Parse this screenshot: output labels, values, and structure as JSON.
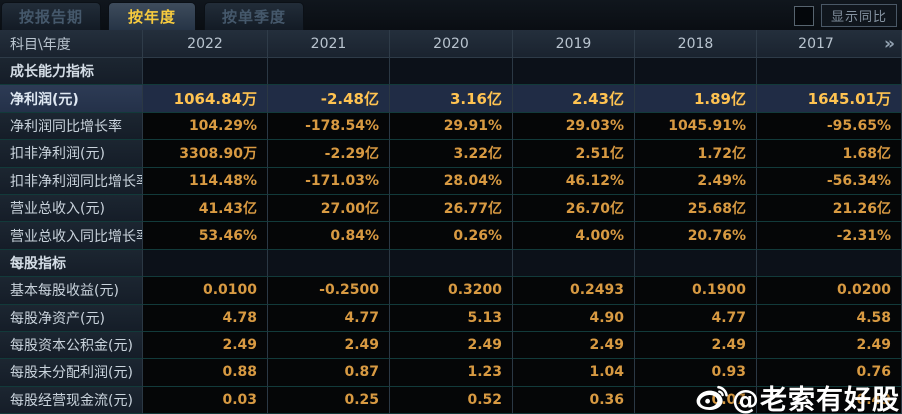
{
  "tabs": [
    {
      "label": "按报告期",
      "active": false
    },
    {
      "label": "按年度",
      "active": true
    },
    {
      "label": "按单季度",
      "active": false
    }
  ],
  "controls": {
    "show_yoy_label": "显示同比",
    "checkbox_checked": false
  },
  "table": {
    "corner_header": "科目\\年度",
    "year_columns": [
      "2022",
      "2021",
      "2020",
      "2019",
      "2018",
      "2017"
    ],
    "more_icon": "»",
    "rows": [
      {
        "type": "section",
        "label": "成长能力指标"
      },
      {
        "type": "data",
        "highlight": true,
        "label": "净利润(元)",
        "values": [
          "1064.84万",
          "-2.48亿",
          "3.16亿",
          "2.43亿",
          "1.89亿",
          "1645.01万"
        ]
      },
      {
        "type": "data",
        "highlight": false,
        "label": "净利润同比增长率",
        "values": [
          "104.29%",
          "-178.54%",
          "29.91%",
          "29.03%",
          "1045.91%",
          "-95.65%"
        ]
      },
      {
        "type": "data",
        "highlight": false,
        "label": "扣非净利润(元)",
        "values": [
          "3308.90万",
          "-2.29亿",
          "3.22亿",
          "2.51亿",
          "1.72亿",
          "1.68亿"
        ]
      },
      {
        "type": "data",
        "highlight": false,
        "label": "扣非净利润同比增长率",
        "values": [
          "114.48%",
          "-171.03%",
          "28.04%",
          "46.12%",
          "2.49%",
          "-56.34%"
        ]
      },
      {
        "type": "data",
        "highlight": false,
        "label": "营业总收入(元)",
        "values": [
          "41.43亿",
          "27.00亿",
          "26.77亿",
          "26.70亿",
          "25.68亿",
          "21.26亿"
        ]
      },
      {
        "type": "data",
        "highlight": false,
        "label": "营业总收入同比增长率",
        "values": [
          "53.46%",
          "0.84%",
          "0.26%",
          "4.00%",
          "20.76%",
          "-2.31%"
        ]
      },
      {
        "type": "section",
        "label": "每股指标"
      },
      {
        "type": "data",
        "highlight": false,
        "label": "基本每股收益(元)",
        "values": [
          "0.0100",
          "-0.2500",
          "0.3200",
          "0.2493",
          "0.1900",
          "0.0200"
        ]
      },
      {
        "type": "data",
        "highlight": false,
        "label": "每股净资产(元)",
        "values": [
          "4.78",
          "4.77",
          "5.13",
          "4.90",
          "4.77",
          "4.58"
        ]
      },
      {
        "type": "data",
        "highlight": false,
        "label": "每股资本公积金(元)",
        "values": [
          "2.49",
          "2.49",
          "2.49",
          "2.49",
          "2.49",
          "2.49"
        ]
      },
      {
        "type": "data",
        "highlight": false,
        "label": "每股未分配利润(元)",
        "values": [
          "0.88",
          "0.87",
          "1.23",
          "1.04",
          "0.93",
          "0.76"
        ]
      },
      {
        "type": "data",
        "highlight": false,
        "label": "每股经营现金流(元)",
        "values": [
          "0.03",
          "0.25",
          "0.52",
          "0.36",
          "0.07",
          "0.49"
        ]
      }
    ]
  },
  "watermark": {
    "text": "@老索有好股"
  },
  "colors": {
    "active_tab_text": "#f7cb3e",
    "value_text": "#d89a42",
    "highlight_value_text": "#ffc351",
    "label_text": "#c9d3dc",
    "header_text": "#b9c4cf",
    "row_divider": "#123a3a",
    "col_divider": "#2b3844",
    "highlight_row_bg": "#202c45"
  }
}
